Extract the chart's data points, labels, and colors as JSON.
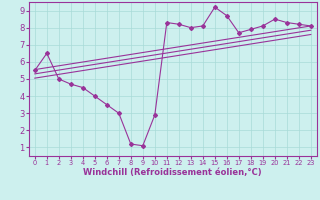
{
  "xlabel": "Windchill (Refroidissement éolien,°C)",
  "xlim": [
    -0.5,
    23.5
  ],
  "ylim": [
    0.5,
    9.5
  ],
  "xticks": [
    0,
    1,
    2,
    3,
    4,
    5,
    6,
    7,
    8,
    9,
    10,
    11,
    12,
    13,
    14,
    15,
    16,
    17,
    18,
    19,
    20,
    21,
    22,
    23
  ],
  "yticks": [
    1,
    2,
    3,
    4,
    5,
    6,
    7,
    8,
    9
  ],
  "bg_color": "#cdf0ee",
  "grid_color": "#a8dbd8",
  "line_color": "#993399",
  "data_x": [
    0,
    1,
    2,
    3,
    4,
    5,
    6,
    7,
    8,
    9,
    10,
    11,
    12,
    13,
    14,
    15,
    16,
    17,
    18,
    19,
    20,
    21,
    22,
    23
  ],
  "data_y": [
    5.5,
    6.5,
    5.0,
    4.7,
    4.5,
    4.0,
    3.5,
    3.0,
    1.2,
    1.1,
    2.9,
    8.3,
    8.2,
    8.0,
    8.1,
    9.2,
    8.7,
    7.7,
    7.9,
    8.1,
    8.5,
    8.3,
    8.2,
    8.1
  ],
  "reg_lines": [
    {
      "x0": 0,
      "y0": 5.55,
      "x1": 23,
      "y1": 8.1
    },
    {
      "x0": 0,
      "y0": 5.3,
      "x1": 23,
      "y1": 7.85
    },
    {
      "x0": 0,
      "y0": 5.05,
      "x1": 23,
      "y1": 7.6
    }
  ],
  "xlabel_fontsize": 6.0,
  "xtick_fontsize": 4.8,
  "ytick_fontsize": 6.0,
  "line_width": 0.8,
  "marker_size": 2.0
}
